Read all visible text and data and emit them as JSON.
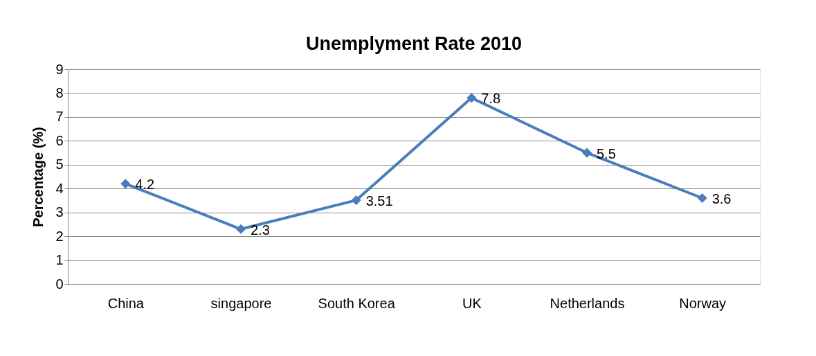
{
  "chart_data": {
    "type": "line",
    "title": "Unemplyment Rate 2010",
    "ylabel": "Percentage (%)",
    "categories": [
      "China",
      "singapore",
      "South Korea",
      "UK",
      "Netherlands",
      "Norway"
    ],
    "series": [
      {
        "color": "#4a7ebb",
        "values": [
          4.2,
          2.3,
          3.51,
          7.8,
          5.5,
          3.6
        ]
      }
    ],
    "ylim": [
      0,
      9
    ],
    "yticks": [
      0,
      1,
      2,
      3,
      4,
      5,
      6,
      7,
      8,
      9
    ],
    "grid": "y",
    "marker": "diamond",
    "data_labels": true
  }
}
